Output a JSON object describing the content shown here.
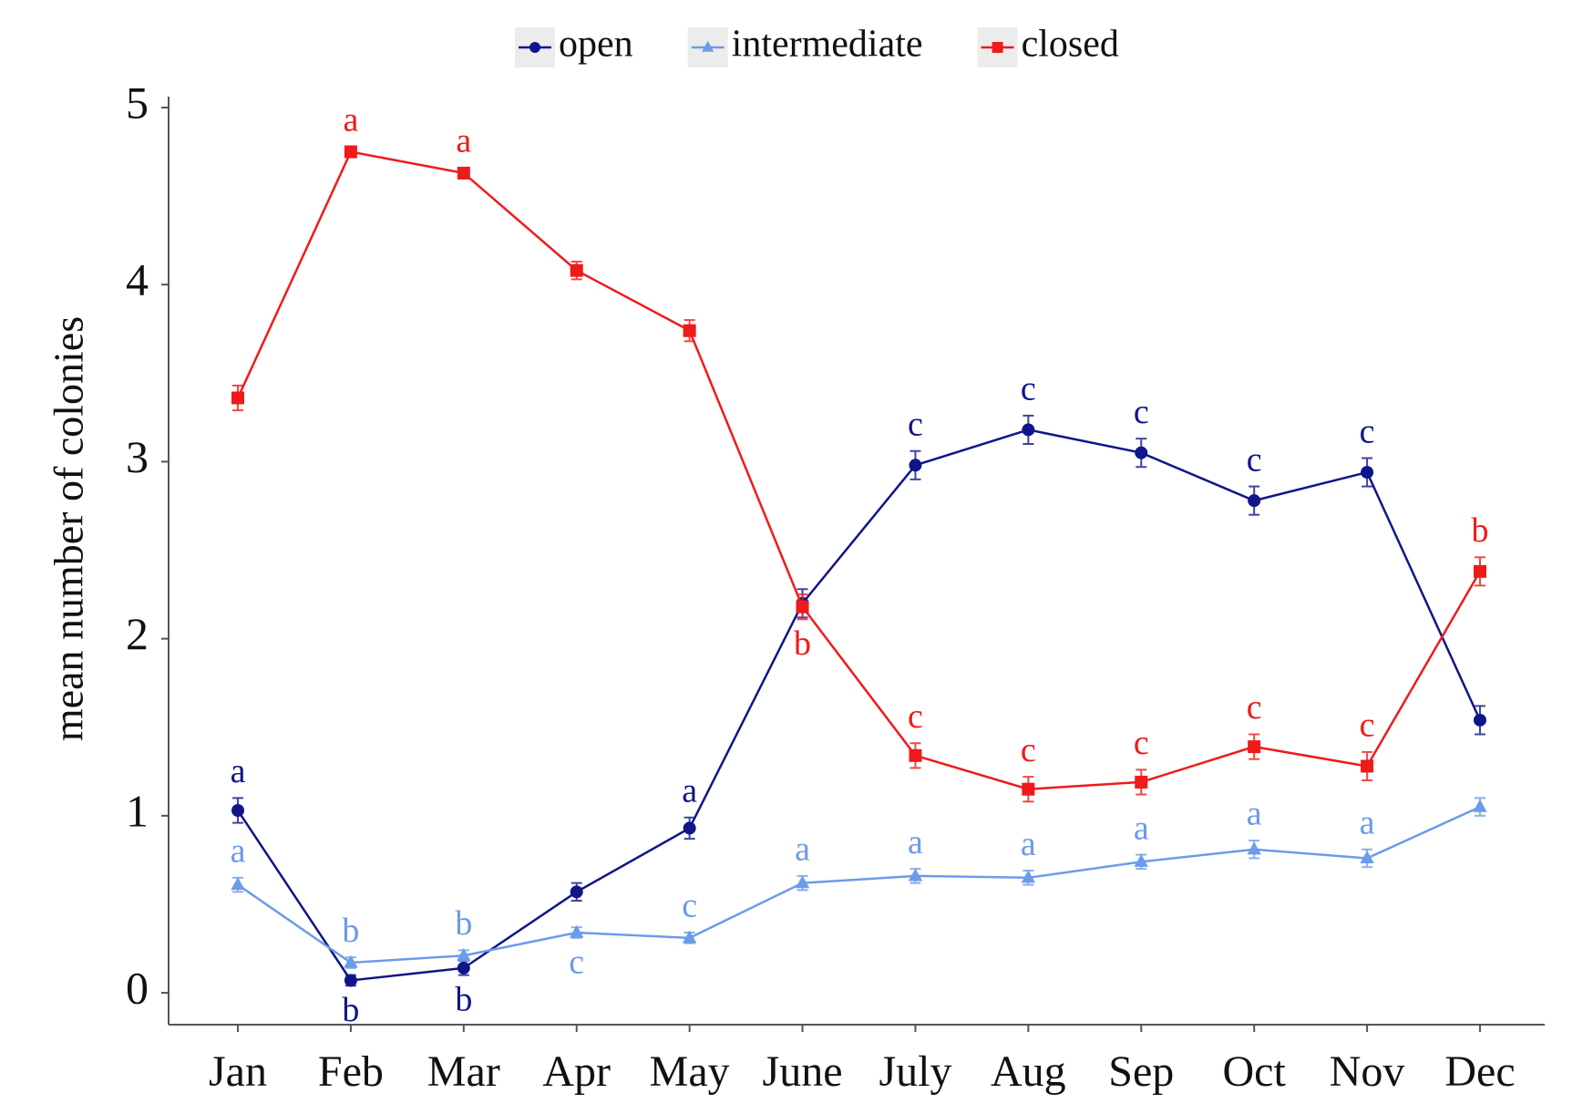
{
  "chart_data": {
    "type": "line",
    "y_label": "mean number of colonies",
    "categories": [
      "Jan",
      "Feb",
      "Mar",
      "Apr",
      "May",
      "June",
      "July",
      "Aug",
      "Sep",
      "Oct",
      "Nov",
      "Dec"
    ],
    "ylim": [
      -0.18,
      5
    ],
    "yticks": [
      0,
      1,
      2,
      3,
      4,
      5
    ],
    "grid": false,
    "legend": "top",
    "series": [
      {
        "name": "open",
        "color": "#10158a",
        "marker": "circle",
        "values": [
          1.03,
          0.07,
          0.14,
          0.57,
          0.93,
          2.2,
          2.98,
          3.18,
          3.05,
          2.78,
          2.94,
          1.54
        ],
        "errors": [
          0.07,
          0.03,
          0.04,
          0.05,
          0.06,
          0.08,
          0.08,
          0.08,
          0.08,
          0.08,
          0.08,
          0.08
        ],
        "letters": [
          "a",
          "b",
          "b",
          null,
          "a",
          null,
          "c",
          "c",
          "c",
          "c",
          "c",
          null
        ]
      },
      {
        "name": "intermediate",
        "color": "#6c9be8",
        "marker": "triangle",
        "values": [
          0.61,
          0.17,
          0.21,
          0.34,
          0.31,
          0.62,
          0.66,
          0.65,
          0.74,
          0.81,
          0.76,
          1.05
        ],
        "errors": [
          0.04,
          0.03,
          0.03,
          0.03,
          0.03,
          0.04,
          0.04,
          0.04,
          0.04,
          0.05,
          0.05,
          0.05
        ],
        "letters": [
          "a",
          "b",
          "b",
          "c",
          "c",
          "a",
          "a",
          "a",
          "a",
          "a",
          "a",
          null
        ]
      },
      {
        "name": "closed",
        "color": "#f01a1a",
        "marker": "square",
        "values": [
          3.36,
          4.75,
          4.63,
          4.08,
          3.74,
          2.18,
          1.34,
          1.15,
          1.19,
          1.39,
          1.28,
          2.38
        ],
        "errors": [
          0.07,
          0.03,
          0.03,
          0.05,
          0.06,
          0.07,
          0.07,
          0.07,
          0.07,
          0.07,
          0.08,
          0.08
        ],
        "letters": [
          null,
          "a",
          "a",
          null,
          null,
          "b",
          "c",
          "c",
          "c",
          "c",
          "c",
          "b"
        ]
      }
    ]
  }
}
